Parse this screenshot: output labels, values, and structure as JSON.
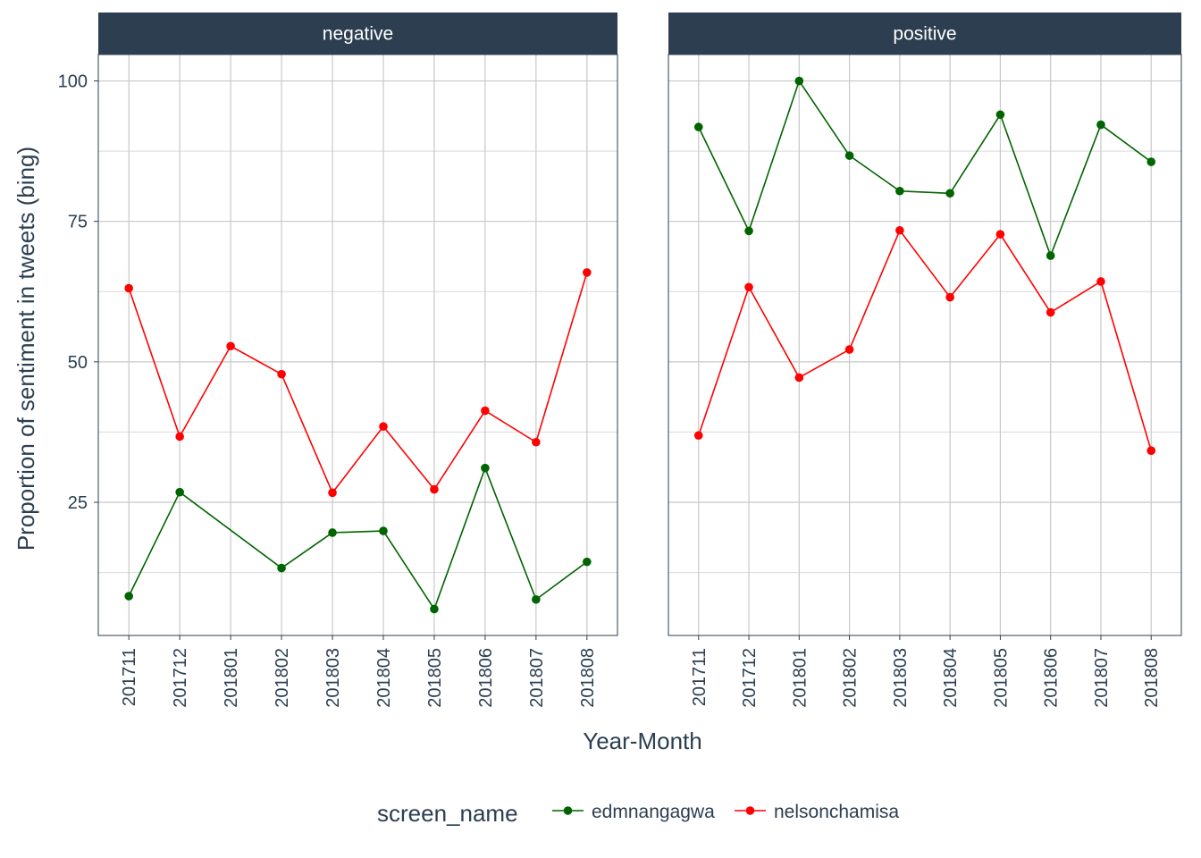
{
  "chart_data": {
    "type": "line",
    "facet_by": "sentiment",
    "panels": [
      {
        "label": "negative",
        "series": [
          {
            "name": "edmnangagwa",
            "color": "#006400",
            "values": [
              8.3,
              26.8,
              null,
              13.3,
              19.6,
              19.9,
              6.0,
              31.1,
              7.7,
              14.4
            ]
          },
          {
            "name": "nelsonchamisa",
            "color": "#ff0000",
            "values": [
              63.1,
              36.7,
              52.8,
              47.8,
              26.7,
              38.5,
              27.3,
              41.3,
              35.7,
              65.9
            ]
          }
        ]
      },
      {
        "label": "positive",
        "series": [
          {
            "name": "edmnangagwa",
            "color": "#006400",
            "values": [
              91.8,
              73.3,
              100.0,
              86.7,
              80.4,
              80.0,
              94.0,
              68.9,
              92.2,
              85.6
            ]
          },
          {
            "name": "nelsonchamisa",
            "color": "#ff0000",
            "values": [
              36.9,
              63.3,
              47.2,
              52.2,
              73.4,
              61.5,
              72.7,
              58.8,
              64.3,
              34.2
            ]
          }
        ]
      }
    ],
    "categories": [
      "201711",
      "201712",
      "201801",
      "201802",
      "201803",
      "201804",
      "201805",
      "201806",
      "201807",
      "201808"
    ],
    "xlabel": "Year-Month",
    "ylabel": "Proportion of sentiment in tweets (bing)",
    "ylim": [
      1.3,
      104.7
    ],
    "yticks": [
      25,
      50,
      75,
      100
    ],
    "grid": true,
    "legend": {
      "title": "screen_name",
      "position": "bottom",
      "entries": [
        "edmnangagwa",
        "nelsonchamisa"
      ]
    },
    "strip_color": "#2c3e50"
  }
}
